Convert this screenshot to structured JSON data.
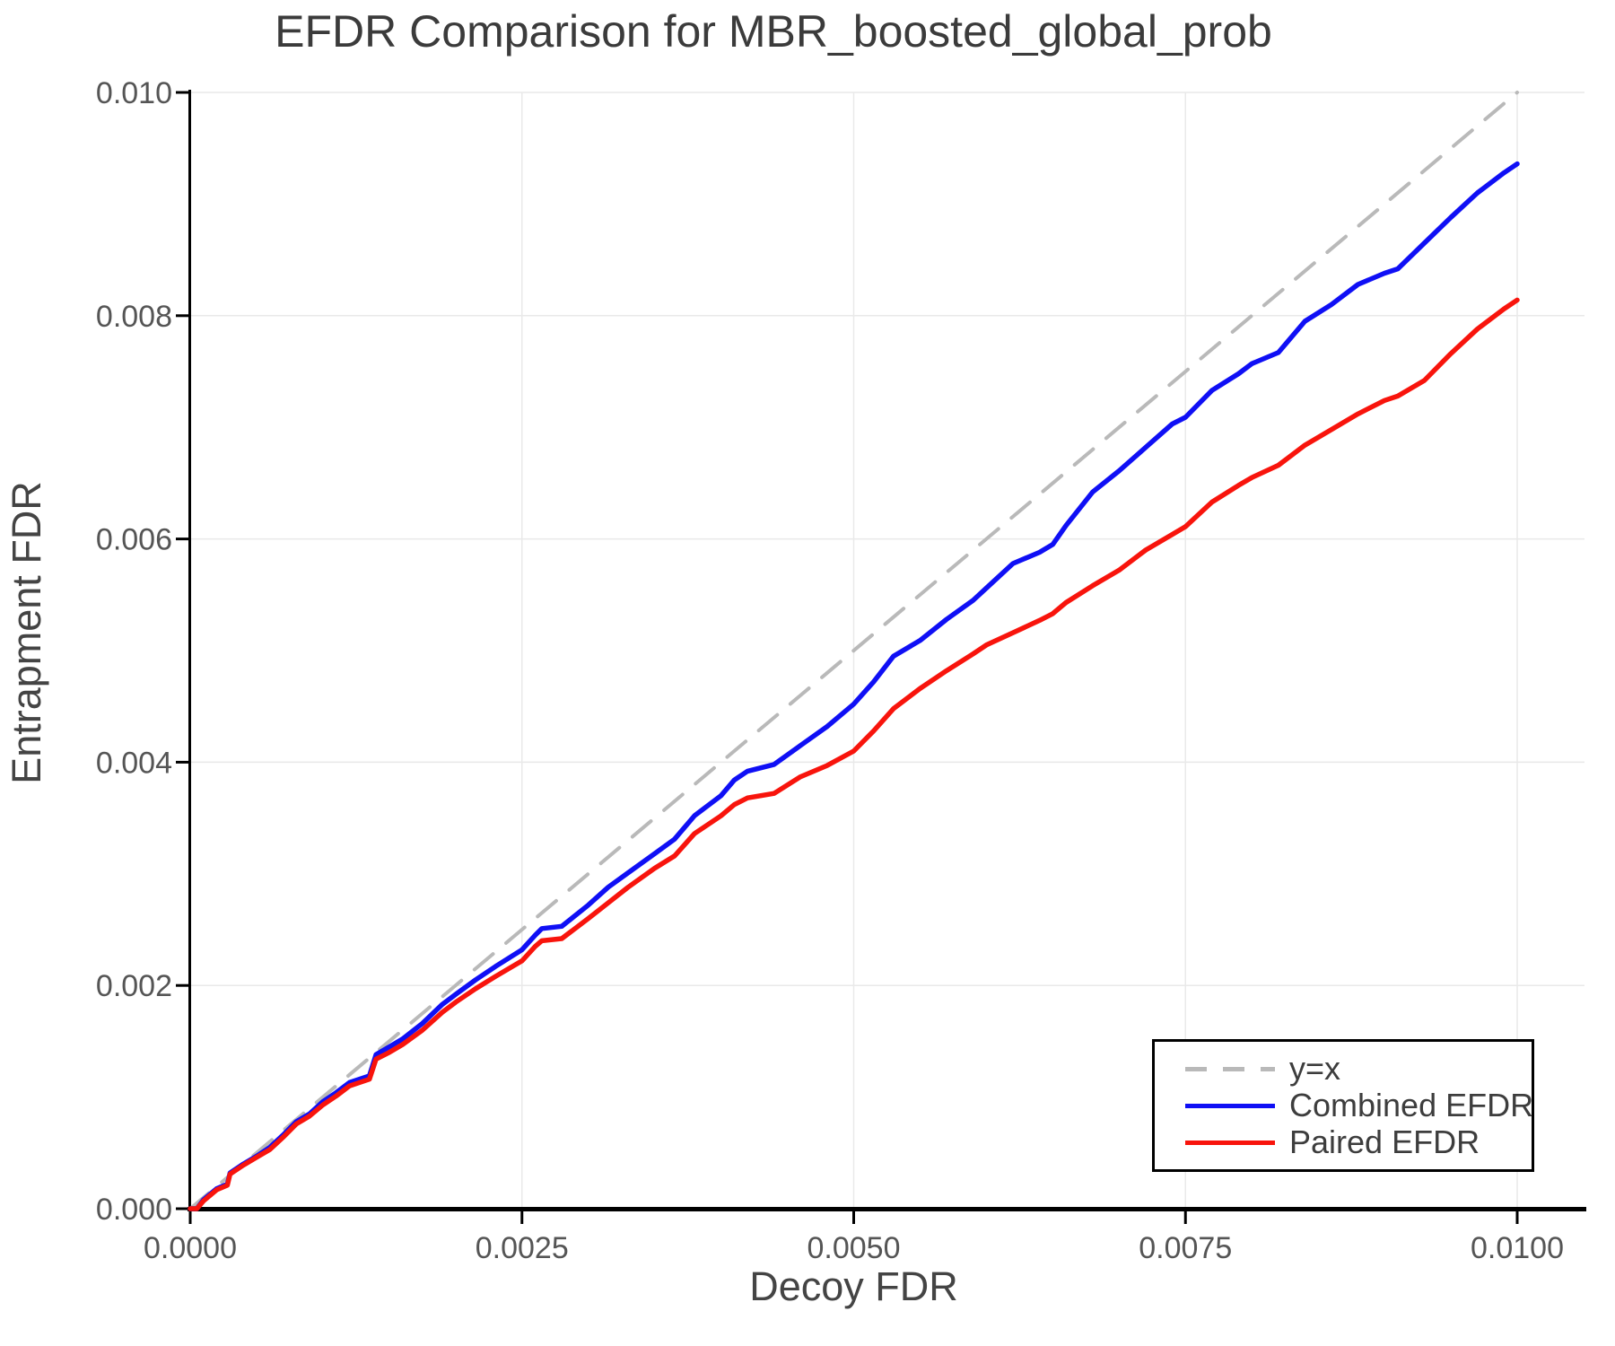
{
  "title": "EFDR Comparison for MBR_boosted_global_prob",
  "colors": {
    "combined": "#0f0ff5",
    "paired": "#f8140c",
    "identity": "#b9b9b9",
    "grid": "#e9e9e9",
    "spine": "#000000",
    "tick_text": "#555555",
    "title_text": "#3b3b3b",
    "axis_label_text": "#444444",
    "legend_border": "#000000",
    "background": "#ffffff"
  },
  "chart_data": {
    "type": "line",
    "title": "EFDR Comparison for MBR_boosted_global_prob",
    "xlabel": "Decoy FDR",
    "ylabel": "Entrapment FDR",
    "xlim": [
      0,
      0.01
    ],
    "ylim": [
      0,
      0.01
    ],
    "grid": true,
    "legend_position": "lower right",
    "x_ticks": {
      "values": [
        0.0,
        0.0025,
        0.005,
        0.0075,
        0.01
      ],
      "labels": [
        "0.0000",
        "0.0025",
        "0.0050",
        "0.0075",
        "0.0100"
      ]
    },
    "y_ticks": {
      "values": [
        0.0,
        0.002,
        0.004,
        0.006,
        0.008,
        0.01
      ],
      "labels": [
        "0.000",
        "0.002",
        "0.004",
        "0.006",
        "0.008",
        "0.010"
      ]
    },
    "series": [
      {
        "name": "y=x",
        "style": "dashed",
        "color": "#b9b9b9",
        "x": [
          0,
          0.01
        ],
        "y": [
          0,
          0.01
        ]
      },
      {
        "name": "Combined EFDR",
        "style": "solid",
        "color": "#0f0ff5",
        "x": [
          0,
          5e-05,
          0.0001,
          0.0002,
          0.00028,
          0.0003,
          0.0004,
          0.0005,
          0.0006,
          0.0007,
          0.0008,
          0.0009,
          0.001,
          0.0011,
          0.0012,
          0.00135,
          0.0014,
          0.0015,
          0.0016,
          0.00175,
          0.0019,
          0.002,
          0.00215,
          0.0023,
          0.0025,
          0.0026,
          0.00265,
          0.0028,
          0.003,
          0.00315,
          0.0033,
          0.0035,
          0.00365,
          0.0038,
          0.004,
          0.0041,
          0.0042,
          0.0044,
          0.0046,
          0.0048,
          0.005,
          0.00515,
          0.0053,
          0.0055,
          0.0057,
          0.0059,
          0.006,
          0.0062,
          0.0064,
          0.0065,
          0.0066,
          0.0068,
          0.007,
          0.0072,
          0.0074,
          0.0075,
          0.0077,
          0.0079,
          0.008,
          0.0082,
          0.0084,
          0.0086,
          0.0088,
          0.009,
          0.0091,
          0.0093,
          0.0095,
          0.0097,
          0.0099,
          0.01
        ],
        "y": [
          0,
          0,
          8e-05,
          0.00018,
          0.00022,
          0.00032,
          0.0004,
          0.00047,
          0.00055,
          0.00066,
          0.00078,
          0.00085,
          0.00096,
          0.00104,
          0.00113,
          0.00119,
          0.00138,
          0.00145,
          0.00152,
          0.00166,
          0.00183,
          0.00192,
          0.00205,
          0.00217,
          0.00232,
          0.00245,
          0.00251,
          0.00253,
          0.00272,
          0.00288,
          0.00301,
          0.00318,
          0.00331,
          0.00352,
          0.0037,
          0.00384,
          0.00392,
          0.00398,
          0.00415,
          0.00432,
          0.00452,
          0.00472,
          0.00495,
          0.00509,
          0.00528,
          0.00545,
          0.00556,
          0.00578,
          0.00588,
          0.00595,
          0.00612,
          0.00642,
          0.00661,
          0.00682,
          0.00703,
          0.00709,
          0.00733,
          0.00748,
          0.00757,
          0.00767,
          0.00795,
          0.0081,
          0.00828,
          0.00838,
          0.00842,
          0.00865,
          0.00888,
          0.0091,
          0.00928,
          0.00936
        ]
      },
      {
        "name": "Paired EFDR",
        "style": "solid",
        "color": "#f8140c",
        "x": [
          0,
          5e-05,
          0.0001,
          0.0002,
          0.00028,
          0.0003,
          0.0004,
          0.0005,
          0.0006,
          0.0007,
          0.0008,
          0.0009,
          0.001,
          0.0011,
          0.0012,
          0.00135,
          0.0014,
          0.0015,
          0.0016,
          0.00175,
          0.0019,
          0.002,
          0.00215,
          0.0023,
          0.0025,
          0.0026,
          0.00265,
          0.0028,
          0.003,
          0.00315,
          0.0033,
          0.0035,
          0.00365,
          0.0038,
          0.004,
          0.0041,
          0.0042,
          0.0044,
          0.0046,
          0.0048,
          0.005,
          0.00515,
          0.0053,
          0.0055,
          0.0057,
          0.0059,
          0.006,
          0.0062,
          0.0064,
          0.0065,
          0.0066,
          0.0068,
          0.007,
          0.0072,
          0.0074,
          0.0075,
          0.0077,
          0.0079,
          0.008,
          0.0082,
          0.0084,
          0.0086,
          0.0088,
          0.009,
          0.0091,
          0.0093,
          0.0095,
          0.0097,
          0.0099,
          0.01
        ],
        "y": [
          0,
          0,
          7e-05,
          0.00017,
          0.00021,
          0.00031,
          0.00039,
          0.00046,
          0.00053,
          0.00064,
          0.00076,
          0.00083,
          0.00093,
          0.00101,
          0.0011,
          0.00116,
          0.00134,
          0.0014,
          0.00147,
          0.0016,
          0.00176,
          0.00185,
          0.00197,
          0.00208,
          0.00222,
          0.00235,
          0.0024,
          0.00242,
          0.0026,
          0.00274,
          0.00288,
          0.00305,
          0.00316,
          0.00336,
          0.00352,
          0.00362,
          0.00368,
          0.00372,
          0.00387,
          0.00397,
          0.0041,
          0.00428,
          0.00448,
          0.00466,
          0.00482,
          0.00497,
          0.00505,
          0.00516,
          0.00527,
          0.00533,
          0.00543,
          0.00558,
          0.00572,
          0.0059,
          0.00604,
          0.00611,
          0.00633,
          0.00648,
          0.00655,
          0.00666,
          0.00684,
          0.00698,
          0.00712,
          0.00724,
          0.00728,
          0.00742,
          0.00766,
          0.00788,
          0.00806,
          0.00814
        ]
      }
    ]
  },
  "legend": {
    "entries": [
      "y=x",
      "Combined EFDR",
      "Paired EFDR"
    ]
  }
}
